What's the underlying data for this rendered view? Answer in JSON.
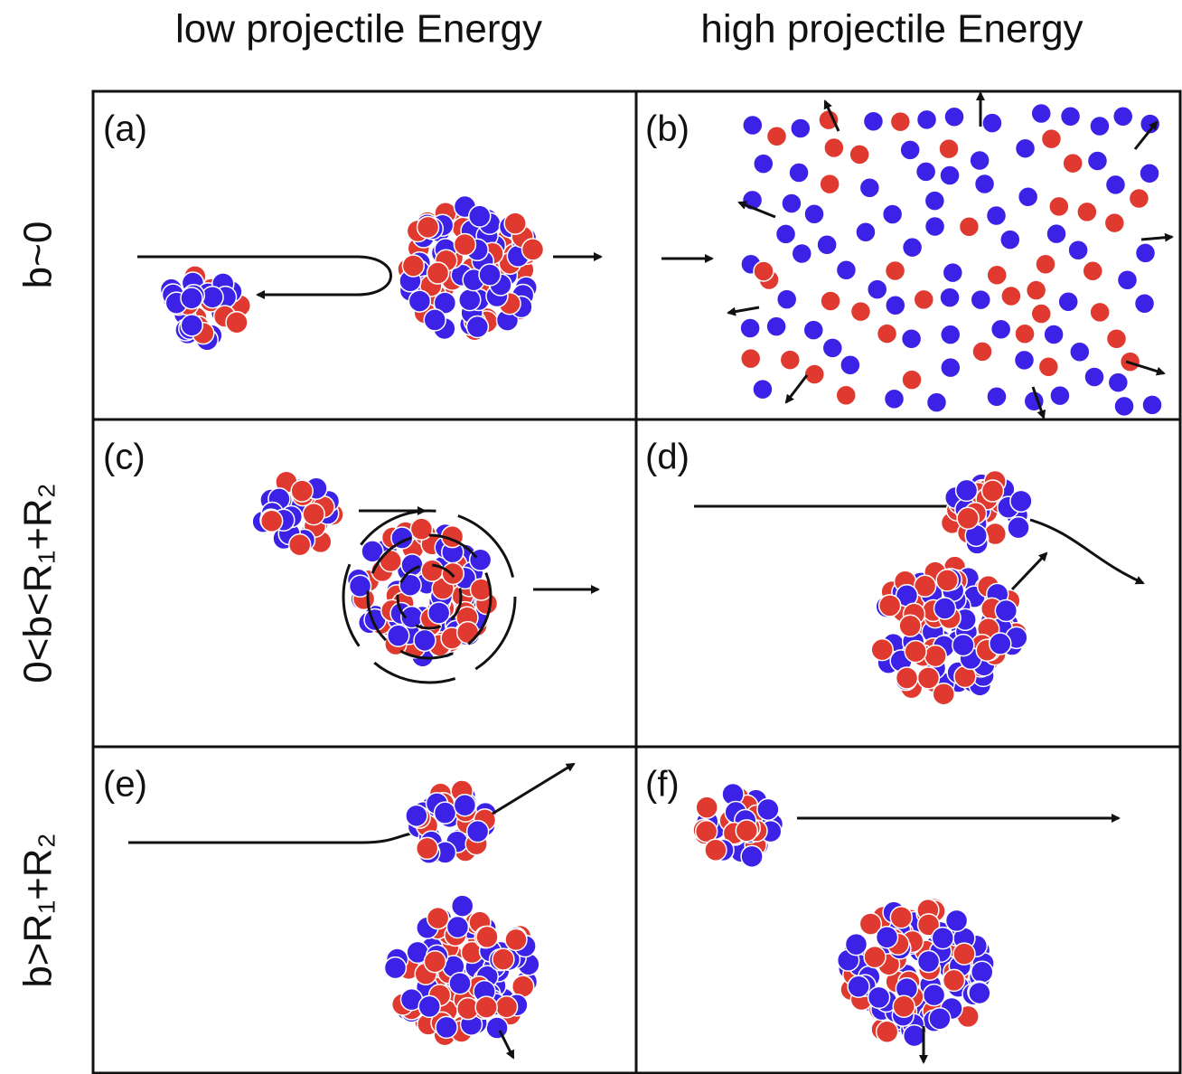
{
  "header": {
    "columns": [
      "low projectile Energy",
      "high projectile Energy"
    ]
  },
  "rows": [
    "b~0",
    "0<b<R₁+R₂",
    "b>R₁+R₂"
  ],
  "panels": [
    "(a)",
    "(b)",
    "(c)",
    "(d)",
    "(e)",
    "(f)"
  ]
}
